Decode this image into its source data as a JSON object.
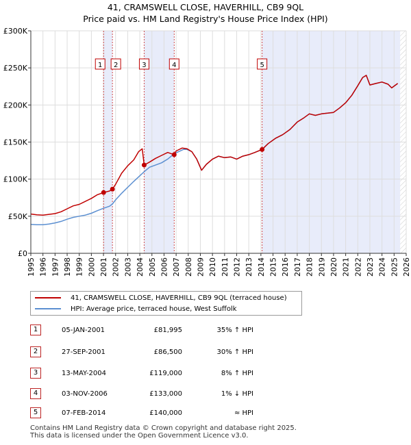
{
  "title": {
    "line1": "41, CRAMSWELL CLOSE, HAVERHILL, CB9 9QL",
    "line2": "Price paid vs. HM Land Registry's House Price Index (HPI)"
  },
  "colors": {
    "property": "#c00000",
    "hpi": "#5b8fd1",
    "shade": "#e8ecfa",
    "grid": "#dddddd",
    "marker_border": "#c00000"
  },
  "chart_data": {
    "type": "line",
    "xlabel": "",
    "ylabel": "",
    "xlim": [
      1995.0,
      2026.0
    ],
    "ylim": [
      0,
      300000
    ],
    "x_ticks": [
      1995,
      1996,
      1997,
      1998,
      1999,
      2000,
      2001,
      2002,
      2003,
      2004,
      2005,
      2006,
      2007,
      2008,
      2009,
      2010,
      2011,
      2012,
      2013,
      2014,
      2015,
      2016,
      2017,
      2018,
      2019,
      2020,
      2021,
      2022,
      2023,
      2024,
      2025,
      2026
    ],
    "y_ticks": [
      {
        "value": 0,
        "label": "£0"
      },
      {
        "value": 50000,
        "label": "£50K"
      },
      {
        "value": 100000,
        "label": "£100K"
      },
      {
        "value": 150000,
        "label": "£150K"
      },
      {
        "value": 200000,
        "label": "£200K"
      },
      {
        "value": 250000,
        "label": "£250K"
      },
      {
        "value": 300000,
        "label": "£300K"
      }
    ],
    "grid": true,
    "shaded_periods": [
      [
        2001.0,
        2001.74
      ],
      [
        2004.36,
        2006.84
      ],
      [
        2014.1,
        2025.5
      ]
    ],
    "hatched_after": 2025.5,
    "series": [
      {
        "name": "41, CRAMSWELL CLOSE, HAVERHILL, CB9 9QL (terraced house)",
        "color": "#c00000",
        "points": [
          [
            1995.0,
            53000
          ],
          [
            1995.5,
            52000
          ],
          [
            1996.0,
            51500
          ],
          [
            1996.5,
            52500
          ],
          [
            1997.0,
            53500
          ],
          [
            1997.5,
            56000
          ],
          [
            1998.0,
            60000
          ],
          [
            1998.5,
            64000
          ],
          [
            1999.0,
            66000
          ],
          [
            1999.5,
            70000
          ],
          [
            2000.0,
            74000
          ],
          [
            2000.5,
            79000
          ],
          [
            2001.01,
            81995
          ],
          [
            2001.5,
            84000
          ],
          [
            2001.74,
            86500
          ],
          [
            2002.0,
            93000
          ],
          [
            2002.5,
            108000
          ],
          [
            2003.0,
            118000
          ],
          [
            2003.5,
            126000
          ],
          [
            2003.9,
            137000
          ],
          [
            2004.2,
            141000
          ],
          [
            2004.36,
            119000
          ],
          [
            2004.8,
            123000
          ],
          [
            2005.3,
            128000
          ],
          [
            2005.8,
            132000
          ],
          [
            2006.3,
            136000
          ],
          [
            2006.84,
            133000
          ],
          [
            2007.0,
            138000
          ],
          [
            2007.5,
            142000
          ],
          [
            2007.9,
            141000
          ],
          [
            2008.3,
            137000
          ],
          [
            2008.7,
            127000
          ],
          [
            2009.1,
            112000
          ],
          [
            2009.5,
            120000
          ],
          [
            2010.0,
            127000
          ],
          [
            2010.5,
            131000
          ],
          [
            2011.0,
            129000
          ],
          [
            2011.5,
            130000
          ],
          [
            2012.0,
            127000
          ],
          [
            2012.5,
            131000
          ],
          [
            2013.0,
            133000
          ],
          [
            2013.5,
            136000
          ],
          [
            2014.1,
            140000
          ],
          [
            2014.6,
            148000
          ],
          [
            2015.2,
            155000
          ],
          [
            2015.8,
            160000
          ],
          [
            2016.4,
            167000
          ],
          [
            2017.0,
            177000
          ],
          [
            2017.5,
            182000
          ],
          [
            2018.0,
            188000
          ],
          [
            2018.5,
            186000
          ],
          [
            2019.0,
            188000
          ],
          [
            2019.5,
            189000
          ],
          [
            2020.0,
            190000
          ],
          [
            2020.5,
            196000
          ],
          [
            2021.0,
            203000
          ],
          [
            2021.5,
            213000
          ],
          [
            2022.0,
            226000
          ],
          [
            2022.4,
            237000
          ],
          [
            2022.7,
            240000
          ],
          [
            2023.0,
            227000
          ],
          [
            2023.5,
            229000
          ],
          [
            2024.0,
            231000
          ],
          [
            2024.5,
            228000
          ],
          [
            2024.8,
            223000
          ],
          [
            2025.3,
            229000
          ]
        ]
      },
      {
        "name": "HPI: Average price, terraced house, West Suffolk",
        "color": "#5b8fd1",
        "points": [
          [
            1995.0,
            39000
          ],
          [
            1995.5,
            38500
          ],
          [
            1996.0,
            38500
          ],
          [
            1996.5,
            39500
          ],
          [
            1997.0,
            41000
          ],
          [
            1997.5,
            43000
          ],
          [
            1998.0,
            46000
          ],
          [
            1998.5,
            48500
          ],
          [
            1999.0,
            50000
          ],
          [
            1999.5,
            51500
          ],
          [
            2000.0,
            54000
          ],
          [
            2000.5,
            57500
          ],
          [
            2001.01,
            60700
          ],
          [
            2001.5,
            63500
          ],
          [
            2001.74,
            66500
          ],
          [
            2002.0,
            72000
          ],
          [
            2002.5,
            81000
          ],
          [
            2003.0,
            89000
          ],
          [
            2003.5,
            97000
          ],
          [
            2003.9,
            103000
          ],
          [
            2004.36,
            110000
          ],
          [
            2004.8,
            116000
          ],
          [
            2005.3,
            119000
          ],
          [
            2005.8,
            122000
          ],
          [
            2006.3,
            127000
          ],
          [
            2006.84,
            134300
          ],
          [
            2007.2,
            137000
          ],
          [
            2007.6,
            140000
          ],
          [
            2007.9,
            140000
          ],
          [
            2008.3,
            137000
          ],
          [
            2008.7,
            127000
          ],
          [
            2009.1,
            112000
          ],
          [
            2009.5,
            120000
          ],
          [
            2010.0,
            127000
          ],
          [
            2010.5,
            131000
          ],
          [
            2011.0,
            129000
          ],
          [
            2011.5,
            130000
          ],
          [
            2012.0,
            127000
          ],
          [
            2012.5,
            131000
          ],
          [
            2013.0,
            133000
          ],
          [
            2013.5,
            136000
          ],
          [
            2014.1,
            140000
          ],
          [
            2014.6,
            148000
          ],
          [
            2015.2,
            155000
          ],
          [
            2015.8,
            160000
          ],
          [
            2016.4,
            167000
          ],
          [
            2017.0,
            177000
          ],
          [
            2017.5,
            182000
          ],
          [
            2018.0,
            188000
          ],
          [
            2018.5,
            186000
          ],
          [
            2019.0,
            188000
          ],
          [
            2019.5,
            189000
          ],
          [
            2020.0,
            190000
          ],
          [
            2020.5,
            196000
          ],
          [
            2021.0,
            203000
          ],
          [
            2021.5,
            213000
          ],
          [
            2022.0,
            226000
          ],
          [
            2022.4,
            237000
          ],
          [
            2022.7,
            240000
          ],
          [
            2023.0,
            227000
          ],
          [
            2023.5,
            229000
          ],
          [
            2024.0,
            231000
          ],
          [
            2024.5,
            228000
          ],
          [
            2024.8,
            223000
          ],
          [
            2025.3,
            229000
          ]
        ]
      }
    ],
    "markers": [
      {
        "label": "1",
        "x": 2001.01,
        "y": 81995
      },
      {
        "label": "2",
        "x": 2001.74,
        "y": 86500
      },
      {
        "label": "3",
        "x": 2004.36,
        "y": 119000
      },
      {
        "label": "4",
        "x": 2006.84,
        "y": 133000
      },
      {
        "label": "5",
        "x": 2014.1,
        "y": 140000
      }
    ]
  },
  "legend": {
    "property_label": "41, CRAMSWELL CLOSE, HAVERHILL, CB9 9QL (terraced house)",
    "hpi_label": "HPI: Average price, terraced house, West Suffolk"
  },
  "sales": [
    {
      "num": "1",
      "date": "05-JAN-2001",
      "price": "£81,995",
      "hpi": "35% ↑ HPI"
    },
    {
      "num": "2",
      "date": "27-SEP-2001",
      "price": "£86,500",
      "hpi": "30% ↑ HPI"
    },
    {
      "num": "3",
      "date": "13-MAY-2004",
      "price": "£119,000",
      "hpi": "8% ↑ HPI"
    },
    {
      "num": "4",
      "date": "03-NOV-2006",
      "price": "£133,000",
      "hpi": "1% ↓ HPI"
    },
    {
      "num": "5",
      "date": "07-FEB-2014",
      "price": "£140,000",
      "hpi": "≈ HPI"
    }
  ],
  "footer": {
    "line1": "Contains HM Land Registry data © Crown copyright and database right 2025.",
    "line2": "This data is licensed under the Open Government Licence v3.0."
  }
}
